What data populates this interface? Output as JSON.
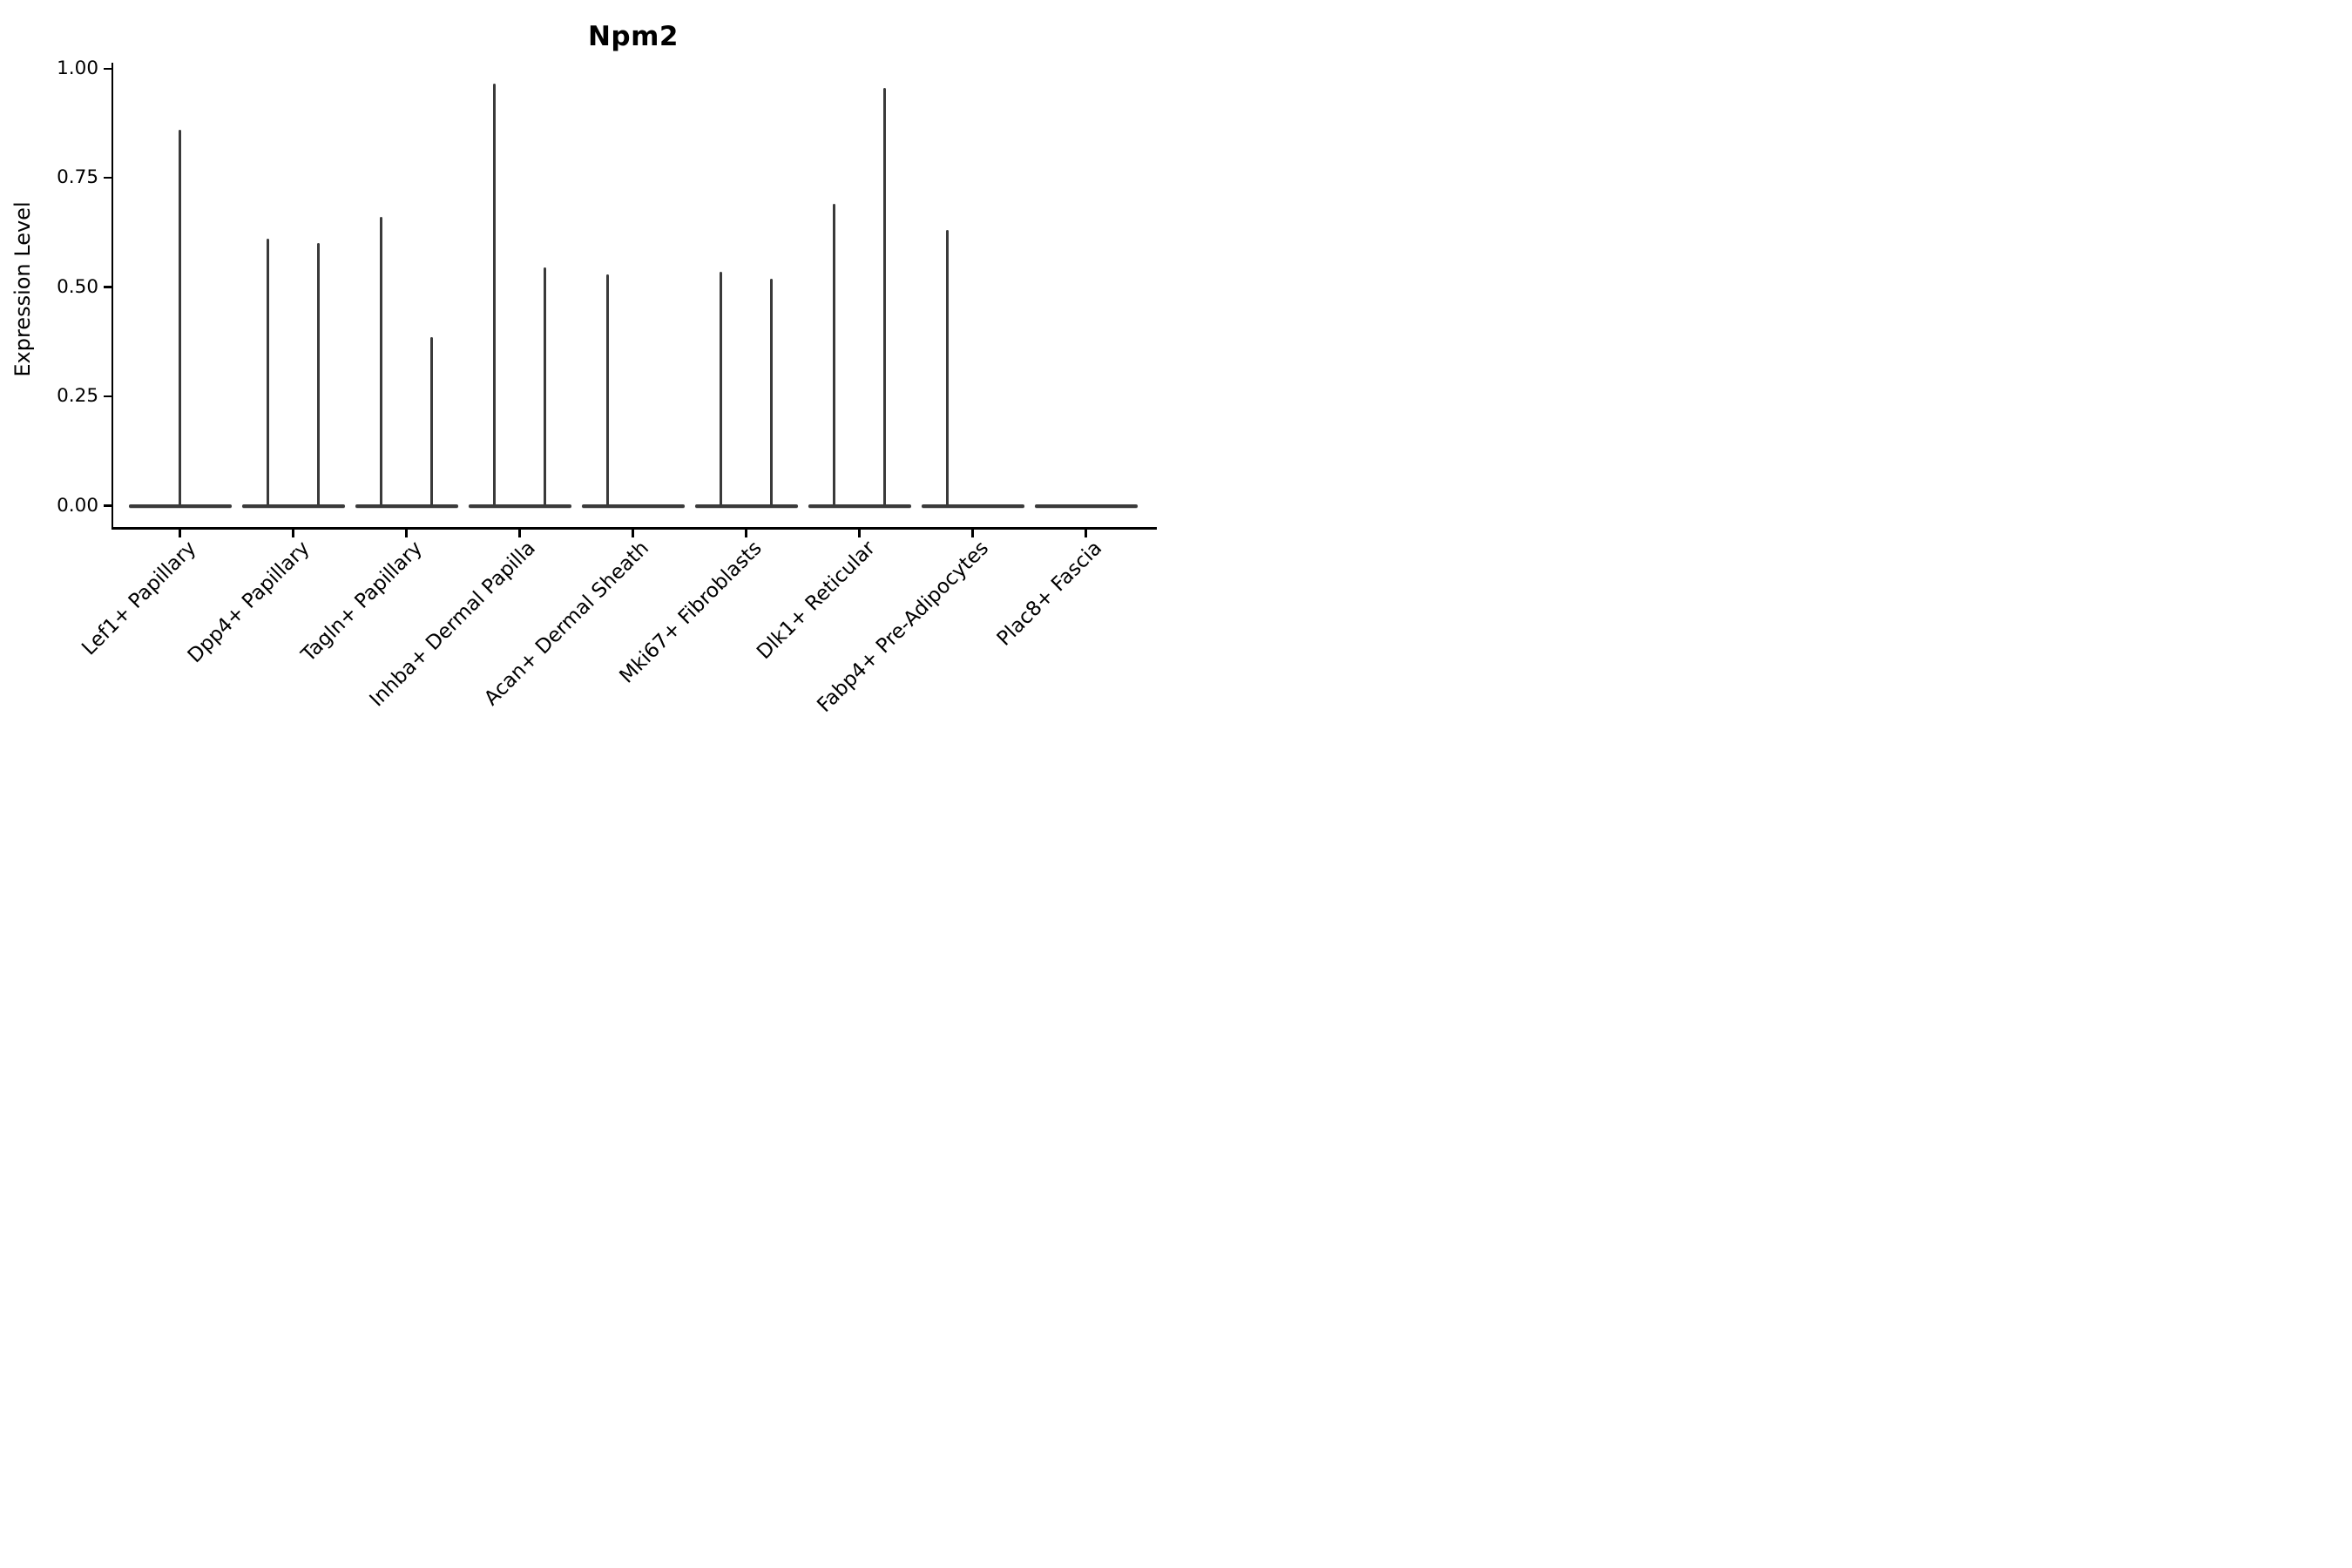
{
  "title": "Npm2",
  "ylabel": "Expression Level",
  "colors": {
    "background": "#ffffff",
    "axis": "#000000",
    "text": "#000000",
    "violin": "#3a3a3a"
  },
  "chart_data": {
    "type": "violin",
    "title": "Npm2",
    "xlabel": "",
    "ylabel": "Expression Level",
    "ylim": [
      0,
      1.0
    ],
    "grid": false,
    "legend_position": "none",
    "y_ticks": [
      {
        "label": "1.00",
        "value": 1.0
      },
      {
        "label": "0.75",
        "value": 0.75
      },
      {
        "label": "0.50",
        "value": 0.5
      },
      {
        "label": "0.25",
        "value": 0.25
      },
      {
        "label": "0.00",
        "value": 0.0
      }
    ],
    "note": "Seurat-style violin plot: each cell type shows a flattened violin at expression 0 (flat horizontal bar) with narrow vertical spikes rising to the maximum expression value; dodged sub-violin spikes sit at +/-0.225 of the category slot width.",
    "categories": [
      {
        "label": "Lef1+ Papillary",
        "spikes": [
          {
            "offset_frac": 0.0,
            "max": 0.86
          }
        ]
      },
      {
        "label": "Dpp4+ Papillary",
        "spikes": [
          {
            "offset_frac": -0.225,
            "max": 0.61
          },
          {
            "offset_frac": 0.225,
            "max": 0.6
          }
        ]
      },
      {
        "label": "Tagln+ Papillary",
        "spikes": [
          {
            "offset_frac": -0.225,
            "max": 0.66
          },
          {
            "offset_frac": 0.225,
            "max": 0.385
          }
        ]
      },
      {
        "label": "Inhba+ Dermal Papilla",
        "spikes": [
          {
            "offset_frac": -0.225,
            "max": 0.965
          },
          {
            "offset_frac": 0.225,
            "max": 0.545
          }
        ]
      },
      {
        "label": "Acan+ Dermal Sheath",
        "spikes": [
          {
            "offset_frac": -0.225,
            "max": 0.53
          }
        ]
      },
      {
        "label": "Mki67+ Fibroblasts",
        "spikes": [
          {
            "offset_frac": -0.225,
            "max": 0.535
          },
          {
            "offset_frac": 0.225,
            "max": 0.52
          }
        ]
      },
      {
        "label": "Dlk1+ Reticular",
        "spikes": [
          {
            "offset_frac": -0.225,
            "max": 0.69
          },
          {
            "offset_frac": 0.225,
            "max": 0.955
          }
        ]
      },
      {
        "label": "Fabp4+ Pre-Adipocytes",
        "spikes": [
          {
            "offset_frac": -0.225,
            "max": 0.63
          }
        ]
      },
      {
        "label": "Plac8+ Fascia",
        "spikes": []
      }
    ]
  }
}
